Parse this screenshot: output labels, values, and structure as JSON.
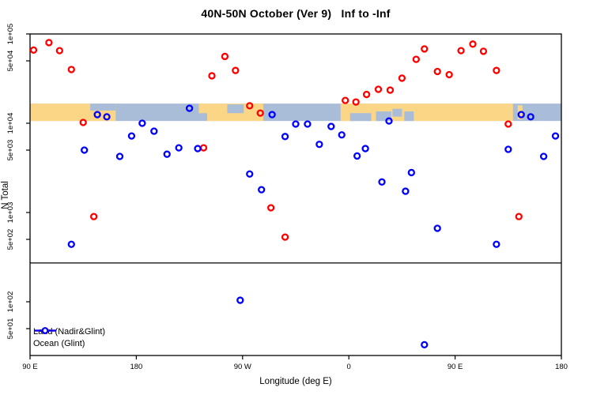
{
  "chart_data": {
    "type": "scatter",
    "title": "40N-50N October (Ver 9)   Inf to -Inf",
    "xlabel": "Longitude (deg E)",
    "ylabel": "N Total",
    "x_axis": {
      "min": 90,
      "max": 540,
      "ticks": [
        {
          "value": 90,
          "label": "90 E"
        },
        {
          "value": 180,
          "label": "180"
        },
        {
          "value": 270,
          "label": "90 W"
        },
        {
          "value": 360,
          "label": "0"
        },
        {
          "value": 450,
          "label": "90 E"
        },
        {
          "value": 540,
          "label": "180"
        }
      ]
    },
    "y_axis": {
      "scale": "log",
      "min": 25,
      "max": 100000,
      "ticks": [
        {
          "value": 100000,
          "label": "1e+05"
        },
        {
          "value": 50000,
          "label": "5e+04"
        },
        {
          "value": 10000,
          "label": "1e+04"
        },
        {
          "value": 5000,
          "label": "5e+03"
        },
        {
          "value": 1000,
          "label": "1e+03"
        },
        {
          "value": 500,
          "label": "5e+02"
        },
        {
          "value": 100,
          "label": "1e+02"
        },
        {
          "value": 50,
          "label": "5e+01"
        }
      ]
    },
    "divider_value": 272,
    "map_strip": {
      "description": "world map band for latitude 40N-50N",
      "value_top": 16600,
      "value_bottom": 10600,
      "ocean_color": "#A9BDD9",
      "land_color": "#FBD687",
      "land_segments": [
        {
          "from": 90,
          "to": 162.5
        },
        {
          "from": 233,
          "to": 240,
          "top": 0,
          "h": 0.55
        },
        {
          "from": 240,
          "to": 287.5
        },
        {
          "from": 353,
          "to": 499
        },
        {
          "from": 503,
          "to": 507,
          "top": 0.1,
          "h": 0.8
        }
      ],
      "ocean_patches": [
        {
          "from": 141,
          "to": 162.5,
          "top": 0,
          "h": 0.4
        },
        {
          "from": 257,
          "to": 271,
          "top": 0.05,
          "h": 0.5
        },
        {
          "from": 361,
          "to": 379,
          "top": 0.55,
          "h": 0.45
        },
        {
          "from": 383,
          "to": 396,
          "top": 0.45,
          "h": 0.55
        },
        {
          "from": 397,
          "to": 405,
          "top": 0.3,
          "h": 0.45
        },
        {
          "from": 407,
          "to": 415,
          "top": 0.45,
          "h": 0.55
        }
      ]
    },
    "series": [
      {
        "name": "Land (Nadir&Glint)",
        "color": "#FF0000",
        "points": [
          [
            93,
            66000
          ],
          [
            106,
            80000
          ],
          [
            115,
            65000
          ],
          [
            125,
            40000
          ],
          [
            135,
            10200
          ],
          [
            144,
            900
          ],
          [
            237,
            5300
          ],
          [
            244,
            34000
          ],
          [
            255,
            56000
          ],
          [
            264,
            39000
          ],
          [
            276,
            15700
          ],
          [
            285,
            13000
          ],
          [
            294,
            1130
          ],
          [
            306,
            530
          ],
          [
            357,
            18000
          ],
          [
            366,
            17300
          ],
          [
            375,
            21000
          ],
          [
            385,
            24000
          ],
          [
            395,
            23500
          ],
          [
            405,
            32000
          ],
          [
            417,
            52000
          ],
          [
            424,
            68000
          ],
          [
            435,
            38000
          ],
          [
            445,
            35000
          ],
          [
            455,
            65000
          ],
          [
            465,
            77000
          ],
          [
            474,
            64000
          ],
          [
            485,
            39000
          ],
          [
            495,
            9800
          ],
          [
            504,
            900
          ]
        ]
      },
      {
        "name": "Ocean (Glint)",
        "color": "#0000FF",
        "points": [
          [
            125,
            440
          ],
          [
            136,
            5000
          ],
          [
            147,
            12500
          ],
          [
            155,
            11800
          ],
          [
            166,
            4250
          ],
          [
            176,
            7200
          ],
          [
            185,
            10000
          ],
          [
            195,
            8150
          ],
          [
            206,
            4500
          ],
          [
            216,
            5300
          ],
          [
            225,
            14700
          ],
          [
            232,
            5200
          ],
          [
            268,
            104
          ],
          [
            276,
            2700
          ],
          [
            286,
            1800
          ],
          [
            295,
            12500
          ],
          [
            306,
            7100
          ],
          [
            315,
            9800
          ],
          [
            325,
            9800
          ],
          [
            335,
            5800
          ],
          [
            345,
            9200
          ],
          [
            354,
            7400
          ],
          [
            367,
            4300
          ],
          [
            374,
            5200
          ],
          [
            388,
            2200
          ],
          [
            394,
            10600
          ],
          [
            408,
            1730
          ],
          [
            413,
            2800
          ],
          [
            424,
            33
          ],
          [
            435,
            665
          ],
          [
            485,
            440
          ],
          [
            495,
            5100
          ],
          [
            506,
            12500
          ],
          [
            514,
            11800
          ],
          [
            525,
            4250
          ],
          [
            535,
            7200
          ]
        ]
      }
    ],
    "legend": {
      "items": [
        {
          "label": "Land (Nadir&Glint)",
          "color": "#FF0000"
        },
        {
          "label": "Ocean (Glint)",
          "color": "#0000FF"
        }
      ]
    }
  }
}
